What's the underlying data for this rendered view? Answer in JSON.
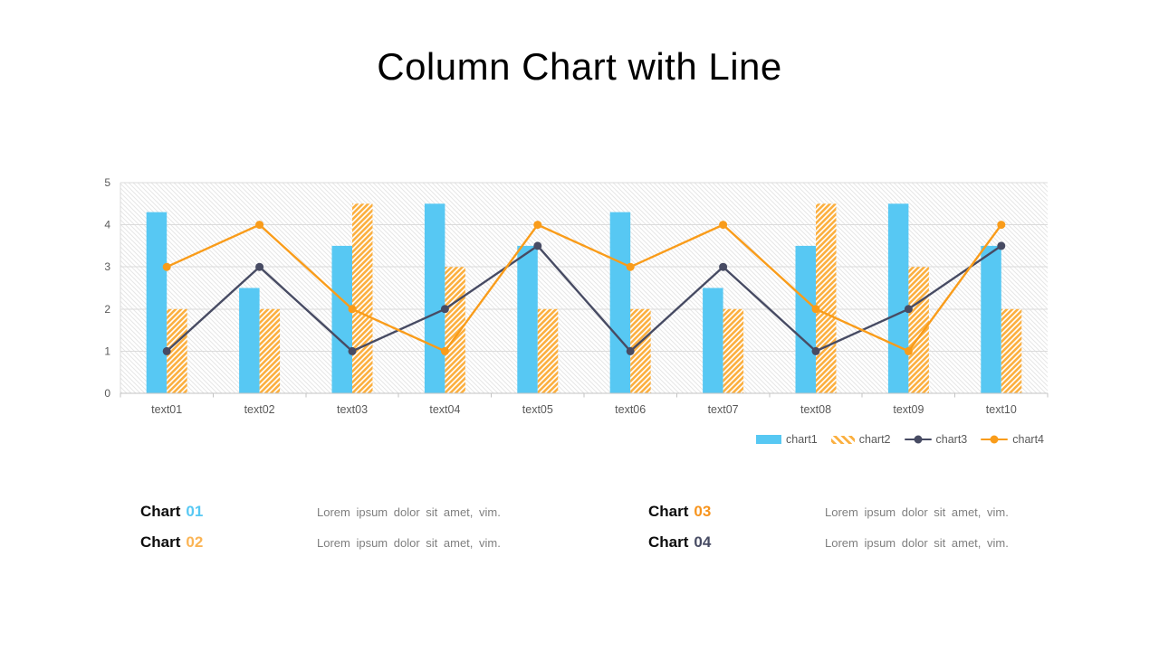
{
  "title": "Column Chart with Line",
  "chart_data": {
    "type": "combo-column-line",
    "title": "Column Chart with Line",
    "categories": [
      "text01",
      "text02",
      "text03",
      "text04",
      "text05",
      "text06",
      "text07",
      "text08",
      "text09",
      "text10"
    ],
    "series": [
      {
        "name": "chart1",
        "kind": "column",
        "style": "solid",
        "color": "#57C8F3",
        "values": [
          4.3,
          2.5,
          3.5,
          4.5,
          3.5,
          4.3,
          2.5,
          3.5,
          4.5,
          3.5
        ]
      },
      {
        "name": "chart2",
        "kind": "column",
        "style": "hatched",
        "color": "#FBB041",
        "values": [
          2,
          2,
          4.5,
          3,
          2,
          2,
          2,
          4.5,
          3,
          2
        ]
      },
      {
        "name": "chart3",
        "kind": "line",
        "style": "marker",
        "color": "#474B63",
        "values": [
          1,
          3,
          1,
          2,
          3.5,
          1,
          3,
          1,
          2,
          3.5
        ]
      },
      {
        "name": "chart4",
        "kind": "line",
        "style": "marker",
        "color": "#F99C1A",
        "values": [
          3,
          4,
          2,
          1,
          4,
          3,
          4,
          2,
          1,
          4
        ]
      }
    ],
    "ylim": [
      0,
      5
    ],
    "yticks": [
      0,
      1,
      2,
      3,
      4,
      5
    ],
    "xlabel": "",
    "ylabel": "",
    "grid": "horizontal",
    "legend_position": "bottom-right",
    "plot_background": {
      "style": "diagonal-hatch",
      "color": "#E6E6E6"
    },
    "grid_color": "#DBDBDB",
    "axis_color": "#C3C3C3",
    "tick_label_color": "#595959"
  },
  "descriptions": {
    "items": [
      {
        "label": "Chart",
        "number": "01",
        "color": "#57C8F3",
        "text": "Lorem ipsum dolor sit amet, vim."
      },
      {
        "label": "Chart",
        "number": "02",
        "color": "#FBB454",
        "text": "Lorem ipsum dolor sit amet, vim."
      },
      {
        "label": "Chart",
        "number": "03",
        "color": "#F7941D",
        "text": "Lorem ipsum dolor sit amet, vim."
      },
      {
        "label": "Chart",
        "number": "04",
        "color": "#474B63",
        "text": "Lorem ipsum dolor sit amet, vim."
      }
    ]
  }
}
